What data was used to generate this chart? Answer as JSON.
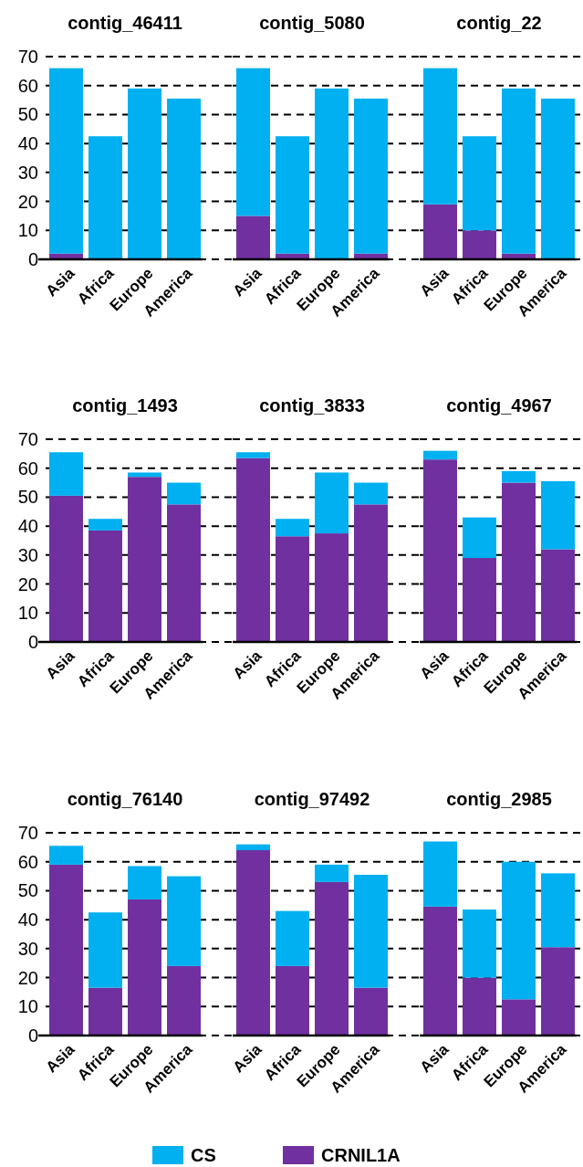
{
  "chart_data": [
    {
      "type": "bar",
      "title": "contig_46411",
      "categories": [
        "Asia",
        "Africa",
        "Europe",
        "America"
      ],
      "stacked": true,
      "ylim": [
        0,
        70
      ],
      "yticks": [
        0,
        10,
        20,
        30,
        40,
        50,
        60,
        70
      ],
      "grid": "y",
      "legend": "bottom",
      "series": [
        {
          "name": "CRNIL1A",
          "color": "#7030a0",
          "values": [
            2,
            0,
            0,
            0
          ]
        },
        {
          "name": "CS",
          "color": "#00b0f0",
          "values": [
            64,
            42.5,
            59,
            55.5
          ]
        }
      ]
    },
    {
      "type": "bar",
      "title": "contig_5080",
      "categories": [
        "Asia",
        "Africa",
        "Europe",
        "America"
      ],
      "stacked": true,
      "ylim": [
        0,
        70
      ],
      "yticks": [
        0,
        10,
        20,
        30,
        40,
        50,
        60,
        70
      ],
      "grid": "y",
      "tick_labels": "x",
      "series": [
        {
          "color": "#7030a0",
          "values": [
            15,
            2,
            0,
            2
          ]
        },
        {
          "color": "#00b0f0",
          "values": [
            51,
            40.5,
            59,
            53.5
          ]
        }
      ]
    },
    {
      "type": "bar",
      "title": "contig_22",
      "categories": [
        "Asia",
        "Africa",
        "Europe",
        "America"
      ],
      "stacked": true,
      "ylim": [
        0,
        70
      ],
      "yticks": [
        0,
        10,
        20,
        30,
        40,
        50,
        60,
        70
      ],
      "grid": "y",
      "tick_labels": "x",
      "series": [
        {
          "color": "#7030a0",
          "values": [
            19,
            10,
            2,
            0
          ]
        },
        {
          "color": "#00b0f0",
          "values": [
            47,
            32.5,
            57,
            55.5
          ]
        }
      ]
    },
    {
      "type": "bar",
      "title": "contig_1493",
      "categories": [
        "Asia",
        "Africa",
        "Europe",
        "America"
      ],
      "stacked": true,
      "ylim": [
        0,
        70
      ],
      "yticks": [
        0,
        10,
        20,
        30,
        40,
        50,
        60,
        70
      ],
      "grid": "y",
      "series": [
        {
          "color": "#7030a0",
          "values": [
            50.5,
            38.5,
            57,
            47.5
          ]
        },
        {
          "color": "#00b0f0",
          "values": [
            15,
            4,
            1.5,
            7.5
          ]
        }
      ]
    },
    {
      "type": "bar",
      "title": "contig_3833",
      "categories": [
        "Asia",
        "Africa",
        "Europe",
        "America"
      ],
      "stacked": true,
      "ylim": [
        0,
        70
      ],
      "yticks": [
        0,
        10,
        20,
        30,
        40,
        50,
        60,
        70
      ],
      "grid": "y",
      "tick_labels": "x",
      "series": [
        {
          "color": "#7030a0",
          "values": [
            63.5,
            36.5,
            37.5,
            47.5
          ]
        },
        {
          "color": "#00b0f0",
          "values": [
            2,
            6,
            21,
            7.5
          ]
        }
      ]
    },
    {
      "type": "bar",
      "title": "contig_4967",
      "categories": [
        "Asia",
        "Africa",
        "Europe",
        "America"
      ],
      "stacked": true,
      "ylim": [
        0,
        70
      ],
      "yticks": [
        0,
        10,
        20,
        30,
        40,
        50,
        60,
        70
      ],
      "grid": "y",
      "tick_labels": "x",
      "series": [
        {
          "color": "#7030a0",
          "values": [
            63,
            29,
            55,
            32
          ]
        },
        {
          "color": "#00b0f0",
          "values": [
            3,
            14,
            4,
            23.5
          ]
        }
      ]
    },
    {
      "type": "bar",
      "title": "contig_76140",
      "categories": [
        "Asia",
        "Africa",
        "Europe",
        "America"
      ],
      "stacked": true,
      "ylim": [
        0,
        70
      ],
      "yticks": [
        0,
        10,
        20,
        30,
        40,
        50,
        60,
        70
      ],
      "grid": "y",
      "series": [
        {
          "color": "#7030a0",
          "values": [
            59,
            16.5,
            47,
            24
          ]
        },
        {
          "color": "#00b0f0",
          "values": [
            6.5,
            26,
            11.5,
            31
          ]
        }
      ]
    },
    {
      "type": "bar",
      "title": "contig_97492",
      "categories": [
        "Asia",
        "Africa",
        "Europe",
        "America"
      ],
      "stacked": true,
      "ylim": [
        0,
        70
      ],
      "yticks": [
        0,
        10,
        20,
        30,
        40,
        50,
        60,
        70
      ],
      "grid": "y",
      "tick_labels": "x",
      "series": [
        {
          "color": "#7030a0",
          "values": [
            64,
            24,
            53,
            16.5
          ]
        },
        {
          "color": "#00b0f0",
          "values": [
            2,
            19,
            6,
            39
          ]
        }
      ]
    },
    {
      "type": "bar",
      "title": "contig_2985",
      "categories": [
        "Asia",
        "Africa",
        "Europe",
        "America"
      ],
      "stacked": true,
      "ylim": [
        0,
        70
      ],
      "yticks": [
        0,
        10,
        20,
        30,
        40,
        50,
        60,
        70
      ],
      "grid": "y",
      "tick_labels": "x",
      "series": [
        {
          "color": "#7030a0",
          "values": [
            44.5,
            20,
            12.5,
            30.5
          ]
        },
        {
          "color": "#00b0f0",
          "values": [
            22.5,
            23.5,
            47.5,
            25.5
          ]
        }
      ]
    }
  ]
}
